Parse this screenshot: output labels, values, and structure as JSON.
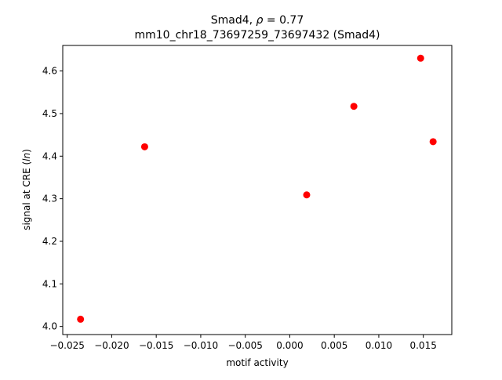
{
  "chart_data": {
    "type": "scatter",
    "title_line1_prefix": "Smad4, ",
    "title_rho_symbol": "ρ",
    "title_rho_value": " = 0.77",
    "title_line2": "mm10_chr18_73697259_73697432 (Smad4)",
    "xlabel": "motif activity",
    "ylabel_prefix": "signal at CRE (",
    "ylabel_italic": "ln",
    "ylabel_suffix": ")",
    "xlim": [
      -0.0255,
      0.0182
    ],
    "ylim": [
      3.981,
      4.66
    ],
    "xticks": [
      -0.025,
      -0.02,
      -0.015,
      -0.01,
      -0.005,
      0.0,
      0.005,
      0.01,
      0.015
    ],
    "xtick_labels": [
      "−0.025",
      "−0.020",
      "−0.015",
      "−0.010",
      "−0.005",
      "0.000",
      "0.005",
      "0.010",
      "0.015"
    ],
    "yticks": [
      4.0,
      4.1,
      4.2,
      4.3,
      4.4,
      4.5,
      4.6
    ],
    "ytick_labels": [
      "4.0",
      "4.1",
      "4.2",
      "4.3",
      "4.4",
      "4.5",
      "4.6"
    ],
    "point_color": "#ff0000",
    "points": [
      {
        "x": -0.0235,
        "y": 4.017
      },
      {
        "x": -0.0163,
        "y": 4.422
      },
      {
        "x": 0.0019,
        "y": 4.309
      },
      {
        "x": 0.0072,
        "y": 4.517
      },
      {
        "x": 0.0147,
        "y": 4.63
      },
      {
        "x": 0.0161,
        "y": 4.434
      }
    ],
    "grid": false,
    "legend": false
  }
}
